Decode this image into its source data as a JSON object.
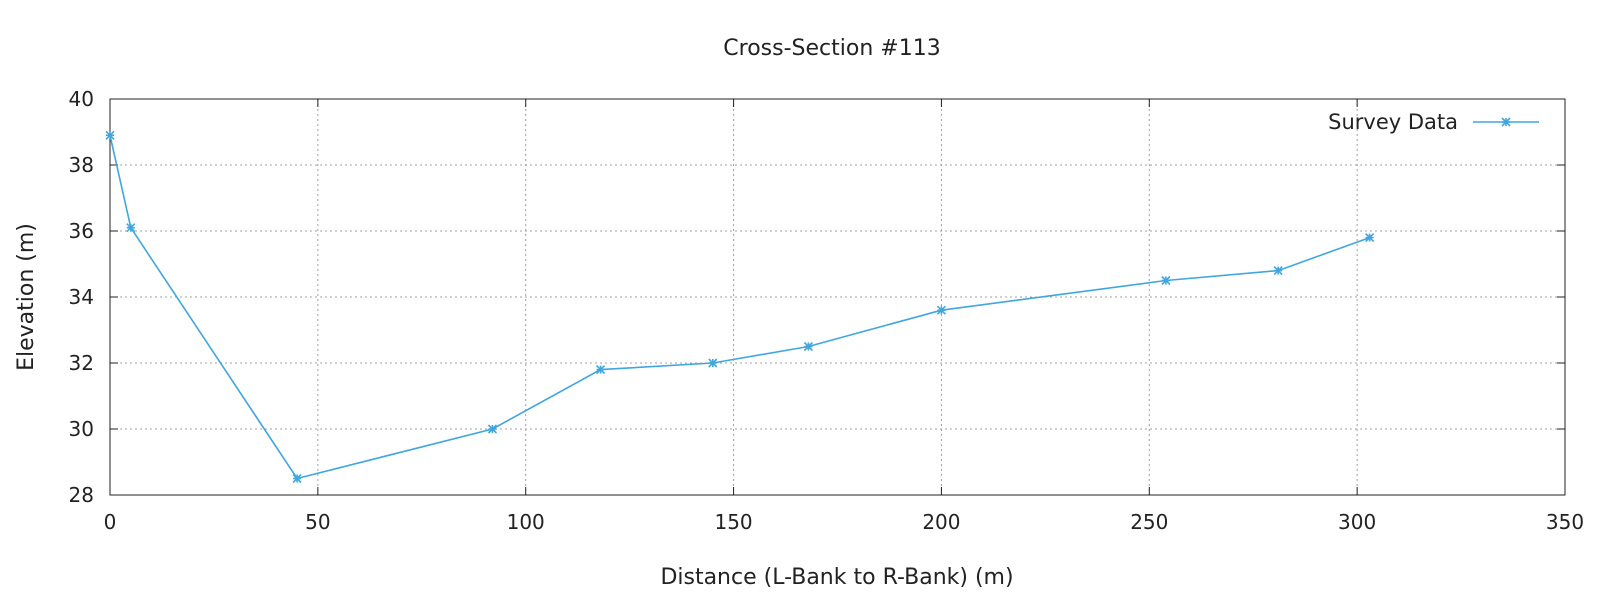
{
  "chart_data": {
    "type": "line",
    "title": "Cross-Section #113",
    "xlabel": "Distance (L-Bank to R-Bank) (m)",
    "ylabel": "Elevation (m)",
    "xlim": [
      0,
      350
    ],
    "ylim": [
      28,
      40
    ],
    "xticks": [
      0,
      50,
      100,
      150,
      200,
      250,
      300,
      350
    ],
    "yticks": [
      28,
      30,
      32,
      34,
      36,
      38,
      40
    ],
    "grid": true,
    "legend_position": "top-right",
    "series": [
      {
        "name": "Survey Data",
        "color": "#3fa6e0",
        "marker": "x-star",
        "x": [
          0,
          5,
          45,
          92,
          118,
          145,
          168,
          200,
          254,
          281,
          303
        ],
        "y": [
          38.9,
          36.1,
          28.5,
          30.0,
          31.8,
          32.0,
          32.5,
          33.6,
          34.5,
          34.8,
          35.8
        ]
      }
    ]
  }
}
